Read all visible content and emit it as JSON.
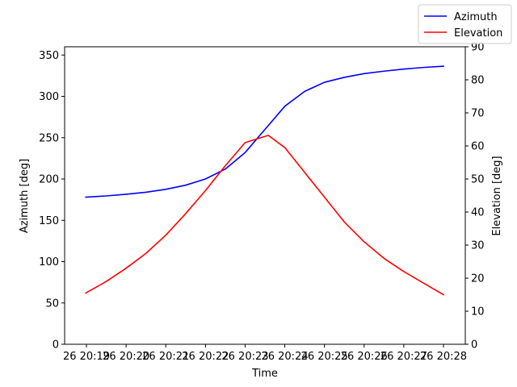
{
  "chart_data": {
    "type": "line",
    "xlabel": "Time",
    "ylabel_left": "Azimuth [deg]",
    "ylabel_right": "Elevation [deg]",
    "x_ticks": [
      "26 20:19",
      "26 20:20",
      "26 20:21",
      "26 20:22",
      "26 20:23",
      "26 20:24",
      "26 20:25",
      "26 20:26",
      "26 20:27",
      "26 20:28"
    ],
    "xlim": [
      "20:18:27",
      "20:28:33"
    ],
    "ylim_left": [
      0,
      360
    ],
    "y_ticks_left": [
      0,
      50,
      100,
      150,
      200,
      250,
      300,
      350
    ],
    "ylim_right": [
      0,
      90
    ],
    "y_ticks_right": [
      0,
      10,
      20,
      30,
      40,
      50,
      60,
      70,
      80,
      90
    ],
    "grid": false,
    "legend_position": "top-right outside plot",
    "series": [
      {
        "name": "Azimuth",
        "axis": "left",
        "color": "#0000ff",
        "x": [
          "20:18:59",
          "20:19:30",
          "20:20:00",
          "20:20:30",
          "20:21:00",
          "20:21:30",
          "20:22:00",
          "20:22:30",
          "20:23:00",
          "20:23:30",
          "20:24:00",
          "20:24:30",
          "20:25:00",
          "20:25:30",
          "20:26:00",
          "20:26:30",
          "20:27:00",
          "20:27:30",
          "20:28:00"
        ],
        "values": [
          178,
          179.5,
          181.5,
          184,
          187.5,
          192.5,
          200,
          212,
          232,
          260,
          288,
          306,
          317,
          323,
          327.5,
          330.5,
          333,
          335,
          336.5
        ]
      },
      {
        "name": "Elevation",
        "axis": "right",
        "color": "#ff0000",
        "x": [
          "20:18:59",
          "20:19:30",
          "20:20:00",
          "20:20:30",
          "20:21:00",
          "20:21:30",
          "20:22:00",
          "20:22:30",
          "20:23:00",
          "20:23:35",
          "20:24:00",
          "20:24:30",
          "20:25:00",
          "20:25:30",
          "20:26:00",
          "20:26:30",
          "20:27:00",
          "20:27:30",
          "20:28:00"
        ],
        "values": [
          15.5,
          19,
          23,
          27.5,
          33,
          39.5,
          46.5,
          54,
          61,
          63.2,
          59.5,
          52,
          44.5,
          37,
          31,
          26,
          22,
          18.5,
          15
        ]
      }
    ]
  }
}
